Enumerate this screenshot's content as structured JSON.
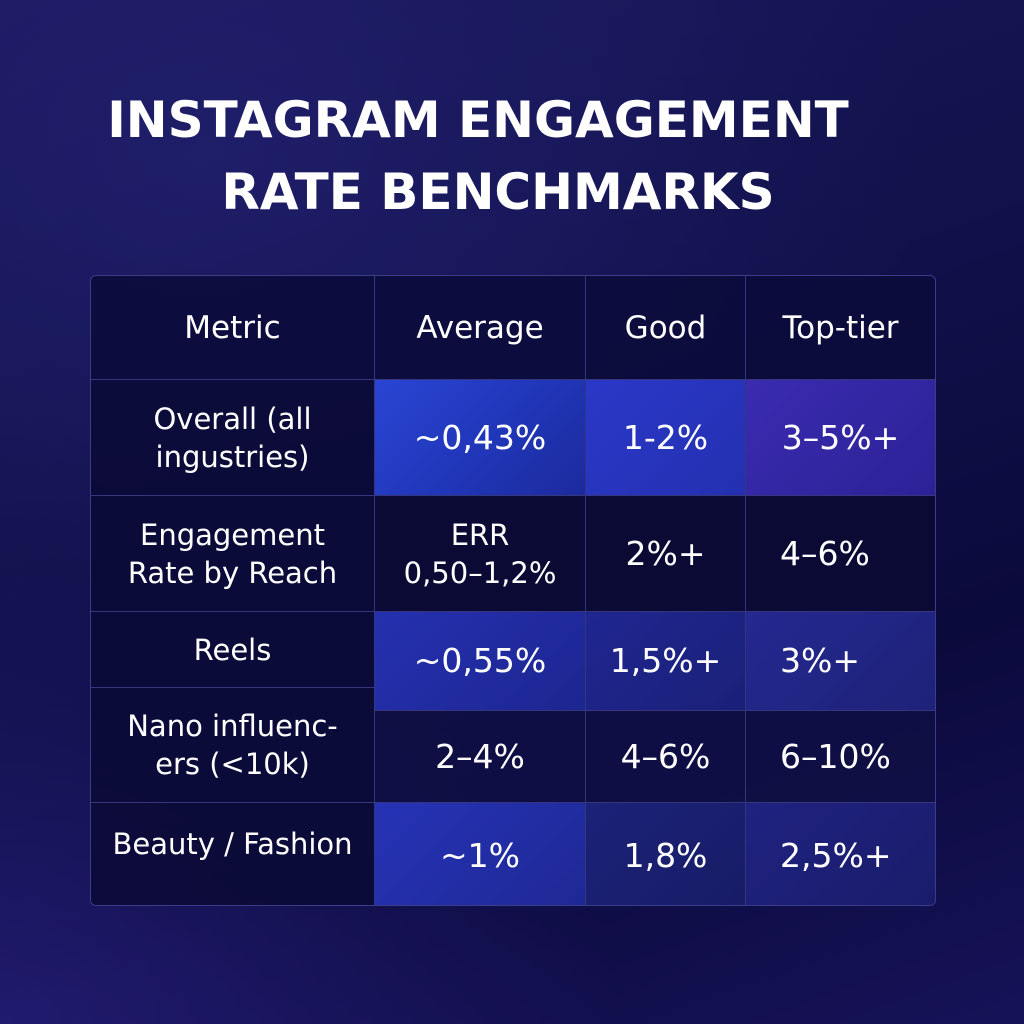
{
  "title": {
    "line1": "INSTAGRAM ENGAGEMENT",
    "line2": "RATE BENCHMARKS"
  },
  "chart_data": {
    "type": "table",
    "title": "INSTAGRAM ENGAGEMENT RATE BENCHMARKS",
    "columns": [
      "Metric",
      "Average",
      "Good",
      "Top-tier"
    ],
    "rows": [
      {
        "metric_line1": "Overall (all",
        "metric_line2": "ingustries)",
        "average": "~0,43%",
        "good": "1-2%",
        "top": "3–5%+"
      },
      {
        "metric_line1": "Engagement",
        "metric_line2": "Rate by Reach",
        "average_line1": "ERR",
        "average_line2": "0,50–1,2%",
        "good": "2%+",
        "top": "4–6%"
      },
      {
        "metric_line1": "Reels",
        "average": "~0,55%",
        "good": "1,5%+",
        "top": "3%+"
      },
      {
        "metric_line1": "Nano influenc-",
        "metric_line2": "ers  (<10k)",
        "average": "2–4%",
        "good": "4–6%",
        "top": "6–10%"
      },
      {
        "metric_line1": "Beauty / Fashion",
        "average": "~1%",
        "good": "1,8%",
        "top": "2,5%+"
      }
    ]
  }
}
